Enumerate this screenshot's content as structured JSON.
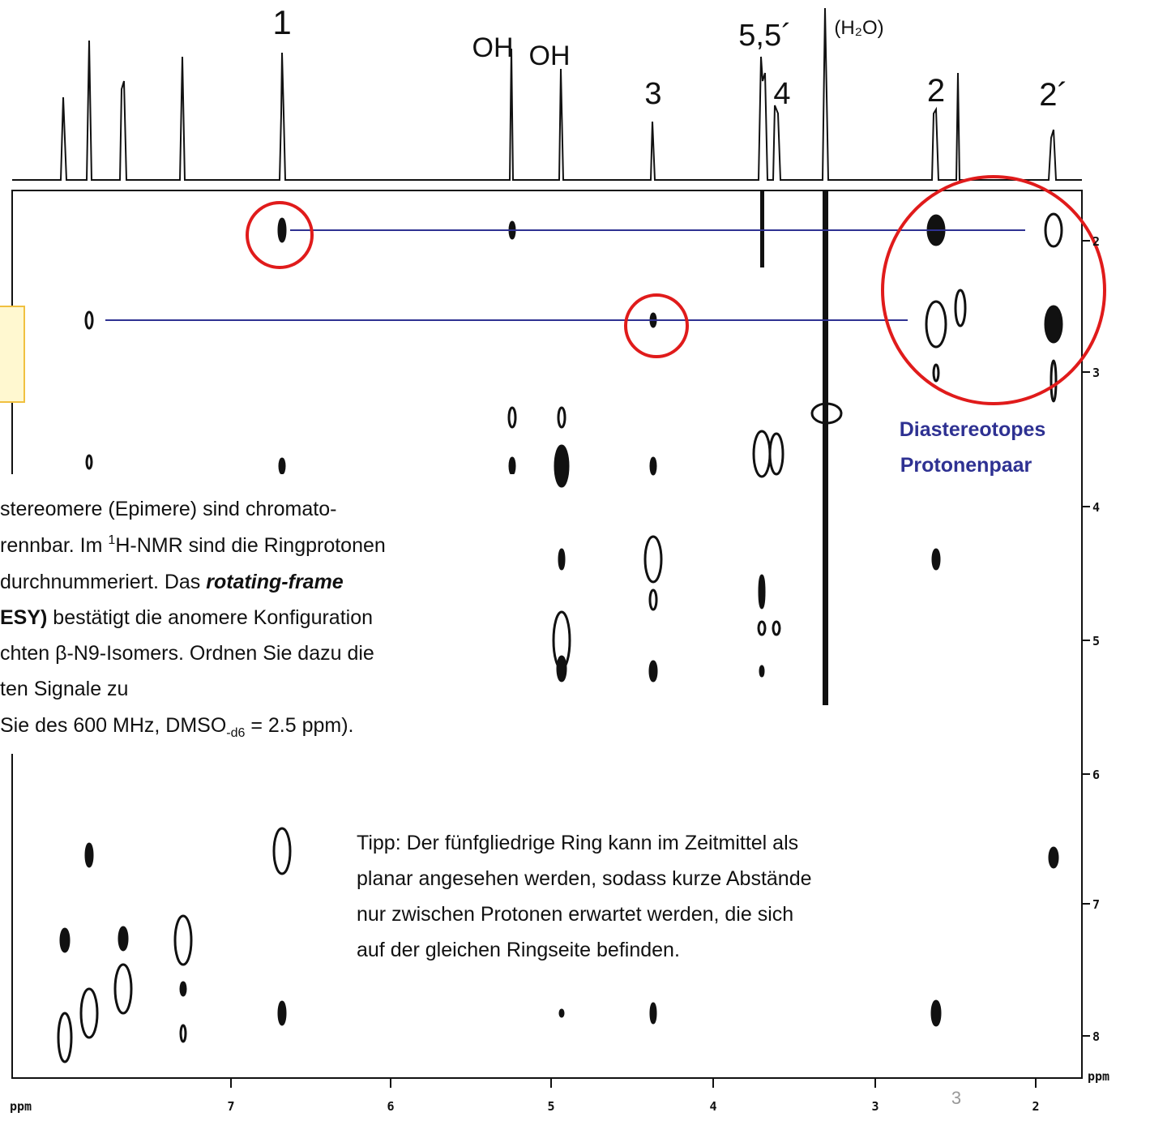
{
  "spectrum": {
    "peak_labels": [
      "1",
      "OH",
      "OH",
      "3",
      "5,5´",
      "(H₂O)",
      "4",
      "2",
      "2´"
    ],
    "x_axis": {
      "unit": "ppm",
      "ticks": [
        "7",
        "6",
        "5",
        "4",
        "3",
        "2"
      ]
    },
    "y_axis": {
      "unit": "ppm",
      "ticks": [
        "2",
        "3",
        "4",
        "5",
        "6",
        "7",
        "8"
      ]
    }
  },
  "annotation": {
    "lines": [
      "Diastereotopes",
      "Protonenpaar"
    ]
  },
  "task_text": {
    "lines": [
      [
        "stereomere (Epimere) sind  chromato-"
      ],
      [
        "rennbar. Im ",
        "1",
        "H-NMR sind die Ringprotonen"
      ],
      [
        "durchnummeriert. Das ",
        "rotating-frame"
      ],
      [
        "ESY)",
        " bestätigt die anomere Konfiguration"
      ],
      [
        "chten β-N9-Isomers. Ordnen Sie dazu die"
      ],
      [
        "ten Signale zu"
      ],
      [
        "Sie des 600 MHz, DMSO",
        "-d6",
        " = 2.5 ppm)."
      ]
    ]
  },
  "tip": {
    "lines": [
      "Tipp: Der fünfgliedrige Ring kann im Zeitmittel als",
      "planar angesehen werden, sodass kurze Abstände",
      "nur zwischen Protonen erwartet werden, die sich",
      "auf der gleichen Ringseite befinden."
    ]
  },
  "page_number": "3"
}
